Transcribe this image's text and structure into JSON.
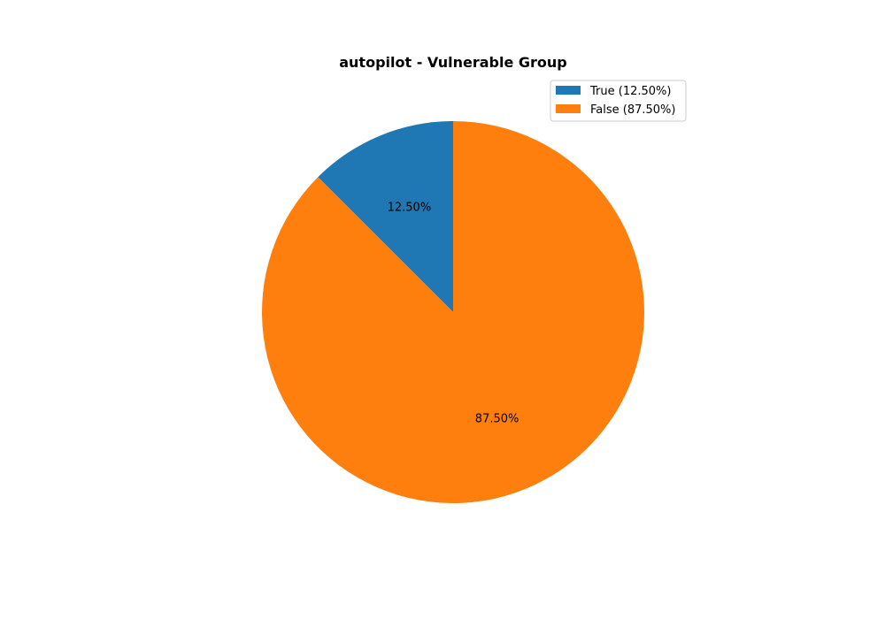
{
  "chart_data": {
    "type": "pie",
    "title": "autopilot - Vulnerable Group",
    "slices": [
      {
        "label": "True (12.50%)",
        "value": 12.5,
        "pct_label": "12.50%",
        "color": "#1f77b4"
      },
      {
        "label": "False (87.50%)",
        "value": 87.5,
        "pct_label": "87.50%",
        "color": "#ff7f0e"
      }
    ],
    "start_angle_deg": 90,
    "direction": "counterclockwise",
    "legend_position": "top-right"
  }
}
